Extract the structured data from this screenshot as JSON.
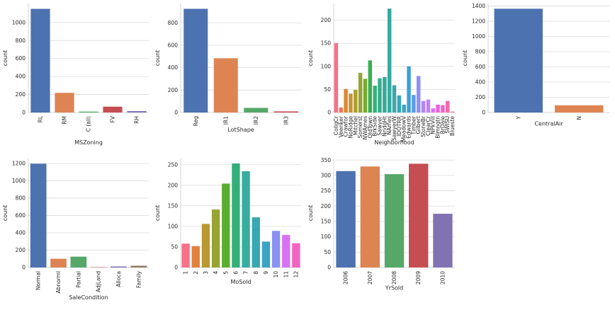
{
  "chart_data": [
    {
      "type": "bar",
      "xlabel": "MSZoning",
      "ylabel": "count",
      "categories": [
        "RL",
        "RM",
        "C (all)",
        "FV",
        "RH"
      ],
      "values": [
        1151,
        218,
        10,
        65,
        16
      ],
      "colors": [
        "#4c72b0",
        "#dd8452",
        "#55a868",
        "#c44e52",
        "#8172b3"
      ],
      "yticks": [
        0,
        200,
        400,
        600,
        800,
        1000
      ],
      "ylim": [
        0,
        1210
      ],
      "grid": true
    },
    {
      "type": "bar",
      "xlabel": "LotShape",
      "ylabel": "count",
      "categories": [
        "Reg",
        "IR1",
        "IR2",
        "IR3"
      ],
      "values": [
        925,
        484,
        41,
        10
      ],
      "colors": [
        "#4c72b0",
        "#dd8452",
        "#55a868",
        "#c44e52"
      ],
      "yticks": [
        0,
        200,
        400,
        600,
        800
      ],
      "ylim": [
        0,
        972
      ],
      "grid": true
    },
    {
      "type": "bar",
      "xlabel": "Neighborhood",
      "ylabel": "count",
      "categories": [
        "CollgCr",
        "Veenker",
        "Crawfor",
        "NoRidge",
        "Mitchel",
        "Somerst",
        "NWAmes",
        "OldTown",
        "BrkSide",
        "Sawyer",
        "NridgHt",
        "NAmes",
        "SawyerW",
        "IDOTRR",
        "MeadowV",
        "Edwards",
        "Timber",
        "Gilbert",
        "StoneBr",
        "ClearCr",
        "NPkVill",
        "Blmngtn",
        "BrDale",
        "SWISU",
        "Blueste"
      ],
      "values": [
        150,
        11,
        51,
        41,
        49,
        86,
        73,
        113,
        58,
        74,
        77,
        225,
        59,
        37,
        17,
        100,
        38,
        79,
        25,
        28,
        9,
        17,
        16,
        25,
        2
      ],
      "colors": [
        "#f77189",
        "#ef7a5b",
        "#dc8932",
        "#c39532",
        "#ae9d31",
        "#97a431",
        "#77ab31",
        "#3aaf52",
        "#33b07a",
        "#35ad8b",
        "#36ab97",
        "#37aaa2",
        "#38a9ac",
        "#39a7b7",
        "#3ba3c3",
        "#3e9fd7",
        "#5d9be8",
        "#8e90f3",
        "#ac87f4",
        "#c87ff4",
        "#e06df4",
        "#f15fde",
        "#f461c4",
        "#f56aa8",
        "#f56f96"
      ],
      "yticks": [
        0,
        50,
        100,
        150,
        200
      ],
      "ylim": [
        0,
        236
      ],
      "grid": true
    },
    {
      "type": "bar",
      "xlabel": "CentralAir",
      "ylabel": "count",
      "categories": [
        "Y",
        "N"
      ],
      "values": [
        1365,
        95
      ],
      "colors": [
        "#4c72b0",
        "#dd8452"
      ],
      "yticks": [
        0,
        200,
        400,
        600,
        800,
        1000,
        1200,
        1400
      ],
      "ylim": [
        0,
        1433
      ],
      "grid": true
    },
    {
      "type": "bar",
      "xlabel": "SaleCondition",
      "ylabel": "count",
      "categories": [
        "Normal",
        "Abnorml",
        "Partial",
        "AdjLand",
        "Alloca",
        "Family"
      ],
      "values": [
        1198,
        101,
        125,
        4,
        12,
        20
      ],
      "colors": [
        "#4c72b0",
        "#dd8452",
        "#55a868",
        "#c44e52",
        "#8172b3",
        "#937860"
      ],
      "yticks": [
        0,
        200,
        400,
        600,
        800,
        1000,
        1200
      ],
      "ylim": [
        0,
        1258
      ],
      "grid": true
    },
    {
      "type": "bar",
      "xlabel": "MoSold",
      "ylabel": "count",
      "categories": [
        "1",
        "2",
        "3",
        "4",
        "5",
        "6",
        "7",
        "8",
        "9",
        "10",
        "11",
        "12"
      ],
      "values": [
        58,
        52,
        106,
        141,
        204,
        253,
        234,
        122,
        63,
        89,
        79,
        59
      ],
      "colors": [
        "#f77189",
        "#e0823f",
        "#b99731",
        "#96a431",
        "#5aae32",
        "#33b07a",
        "#36ad9e",
        "#38a8b1",
        "#3ba3c6",
        "#8b91f3",
        "#d971f4",
        "#f462c0"
      ],
      "yticks": [
        0,
        50,
        100,
        150,
        200,
        250
      ],
      "ylim": [
        0,
        265
      ],
      "grid": true
    },
    {
      "type": "bar",
      "xlabel": "YrSold",
      "ylabel": "count",
      "categories": [
        "2006",
        "2007",
        "2008",
        "2009",
        "2010"
      ],
      "values": [
        314,
        329,
        304,
        338,
        175
      ],
      "colors": [
        "#4c72b0",
        "#dd8452",
        "#55a868",
        "#c44e52",
        "#8172b3"
      ],
      "yticks": [
        0,
        50,
        100,
        150,
        200,
        250,
        300,
        350
      ],
      "ylim": [
        0,
        355
      ],
      "grid": true
    }
  ]
}
